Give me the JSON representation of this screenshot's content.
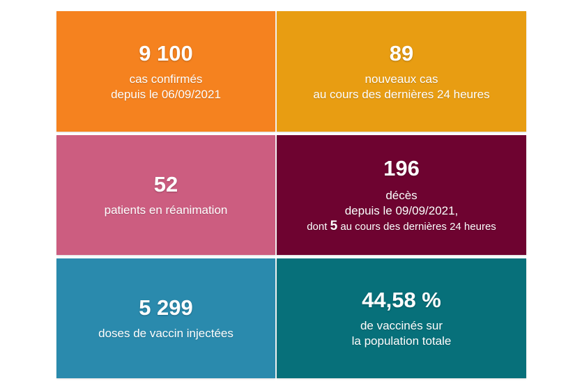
{
  "tiles": [
    {
      "value": "9 100",
      "lines": [
        "cas confirmés",
        "depuis le 06/09/2021"
      ],
      "color": "#f5821f"
    },
    {
      "value": "89",
      "lines": [
        "nouveaux cas",
        "au cours des dernières 24 heures"
      ],
      "color": "#e89d12"
    },
    {
      "value": "52",
      "lines": [
        "patients en réanimation"
      ],
      "color": "#cc5d80"
    },
    {
      "value": "196",
      "lines": [
        "décès",
        "depuis le 09/09/2021,"
      ],
      "detail": {
        "prefix": "dont",
        "number": "5",
        "suffix": "au cours des dernières 24 heures"
      },
      "color": "#6e0330"
    },
    {
      "value": "5 299",
      "lines": [
        "doses de vaccin injectées"
      ],
      "color": "#2a8aad"
    },
    {
      "value": "44,58 %",
      "lines": [
        "de vaccinés sur",
        "la population totale"
      ],
      "color": "#07707a"
    }
  ]
}
